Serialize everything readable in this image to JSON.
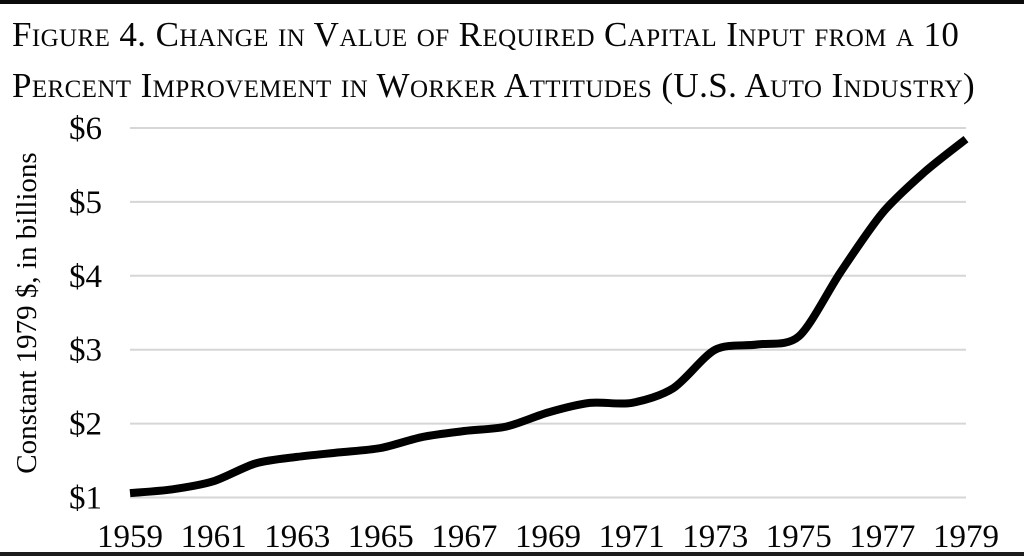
{
  "figure": {
    "title_lines": [
      "Figure 4. Change in Value of Required Capital Input from a 10",
      "Percent Improvement in Worker Attitudes (U.S. Auto Industry)"
    ]
  },
  "chart_data": {
    "type": "line",
    "title": "Figure 4. Change in Value of Required Capital Input from a 10 Percent Improvement in Worker Attitudes (U.S. Auto Industry)",
    "ylabel": "Constant 1979 $, in billions",
    "xlabel": "",
    "x": [
      1959,
      1960,
      1961,
      1962,
      1963,
      1964,
      1965,
      1966,
      1967,
      1968,
      1969,
      1970,
      1971,
      1972,
      1973,
      1974,
      1975,
      1976,
      1977,
      1978,
      1979
    ],
    "values": [
      1.06,
      1.11,
      1.22,
      1.46,
      1.55,
      1.61,
      1.67,
      1.82,
      1.9,
      1.96,
      2.15,
      2.28,
      2.28,
      2.48,
      3.0,
      3.07,
      3.18,
      4.05,
      4.85,
      5.4,
      5.85
    ],
    "xlim": [
      1959,
      1979
    ],
    "ylim": [
      1,
      6
    ],
    "yticks": [
      1,
      2,
      3,
      4,
      5,
      6
    ],
    "ytick_labels": [
      "$1",
      "$2",
      "$3",
      "$4",
      "$5",
      "$6"
    ],
    "xticks": [
      1959,
      1961,
      1963,
      1965,
      1967,
      1969,
      1971,
      1973,
      1975,
      1977,
      1979
    ],
    "xtick_labels": [
      "1959",
      "1961",
      "1963",
      "1965",
      "1967",
      "1969",
      "1971",
      "1973",
      "1975",
      "1977",
      "1979"
    ],
    "grid": true,
    "legend": "none",
    "smoothed": true,
    "line_color": "#000000",
    "grid_color": "#d6d6d6",
    "units": "billions of constant 1979 dollars"
  }
}
